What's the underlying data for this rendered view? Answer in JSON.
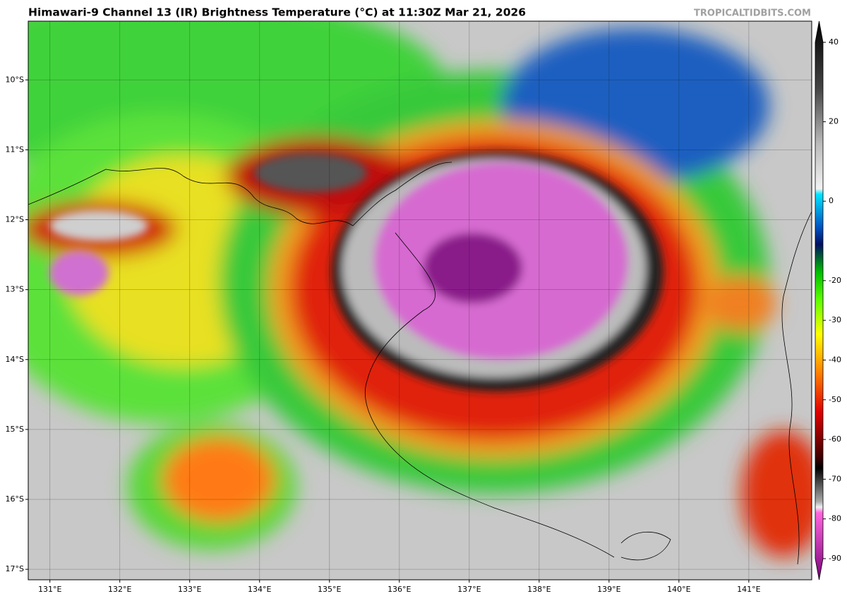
{
  "title": "Himawari-9 Channel 13 (IR) Brightness Temperature (°C) at 11:30Z Mar 21, 2026",
  "credit": "TROPICALTIDBITS.COM",
  "map": {
    "xlim": [
      130.69,
      141.9
    ],
    "ylim": [
      -17.15,
      -9.16
    ],
    "lon_ticks": [
      {
        "value": 131,
        "label": "131°E"
      },
      {
        "value": 132,
        "label": "132°E"
      },
      {
        "value": 133,
        "label": "133°E"
      },
      {
        "value": 134,
        "label": "134°E"
      },
      {
        "value": 135,
        "label": "135°E"
      },
      {
        "value": 136,
        "label": "136°E"
      },
      {
        "value": 137,
        "label": "137°E"
      },
      {
        "value": 138,
        "label": "138°E"
      },
      {
        "value": 139,
        "label": "139°E"
      },
      {
        "value": 140,
        "label": "140°E"
      },
      {
        "value": 141,
        "label": "141°E"
      }
    ],
    "lat_ticks": [
      {
        "value": -10,
        "label": "10°S"
      },
      {
        "value": -11,
        "label": "11°S"
      },
      {
        "value": -12,
        "label": "12°S"
      },
      {
        "value": -13,
        "label": "13°S"
      },
      {
        "value": -14,
        "label": "14°S"
      },
      {
        "value": -15,
        "label": "15°S"
      },
      {
        "value": -16,
        "label": "16°S"
      },
      {
        "value": -17,
        "label": "17°S"
      }
    ]
  },
  "colorbar": {
    "lim": [
      -90,
      40
    ],
    "ticks": [
      40,
      20,
      0,
      -20,
      -30,
      -40,
      -50,
      -60,
      -70,
      -80,
      -90
    ]
  }
}
